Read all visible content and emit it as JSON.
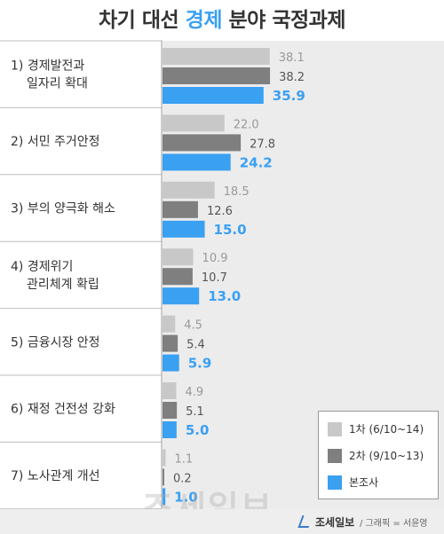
{
  "title": {
    "prefix": "차기 대선",
    "accent": "경제",
    "suffix": "분야 국정과제"
  },
  "colors": {
    "series1": "#c8c8c8",
    "series2": "#7f7f7f",
    "series3": "#3aa0f2",
    "accent": "#3aa0f2",
    "label_bg": "#ffffff",
    "plot_bg": "#ececec",
    "divider": "#bdbdbd"
  },
  "chart_data": {
    "type": "bar",
    "orientation": "horizontal",
    "title": "차기 대선 경제 분야 국정과제",
    "categories": [
      [
        "1) 경제발전과",
        "일자리 확대"
      ],
      [
        "2) 서민 주거안정"
      ],
      [
        "3) 부의 양극화 해소"
      ],
      [
        "4) 경제위기",
        "관리체계 확립"
      ],
      [
        "5) 금융시장 안정"
      ],
      [
        "6) 재정 건전성 강화"
      ],
      [
        "7) 노사관계 개선"
      ]
    ],
    "series": [
      {
        "name": "1차 (6/10~14)",
        "values": [
          38.1,
          22.0,
          18.5,
          10.9,
          4.5,
          4.9,
          1.1
        ]
      },
      {
        "name": "2차 (9/10~13)",
        "values": [
          38.2,
          27.8,
          12.6,
          10.7,
          5.4,
          5.1,
          0.2
        ]
      },
      {
        "name": "본조사",
        "values": [
          35.9,
          24.2,
          15.0,
          13.0,
          5.9,
          5.0,
          1.0
        ]
      }
    ],
    "legend_position": "bottom-right",
    "grid": false
  },
  "footer": {
    "brand": "조세일보",
    "credit": "/ 그래픽 = 서윤영"
  },
  "watermark": "조세일보"
}
